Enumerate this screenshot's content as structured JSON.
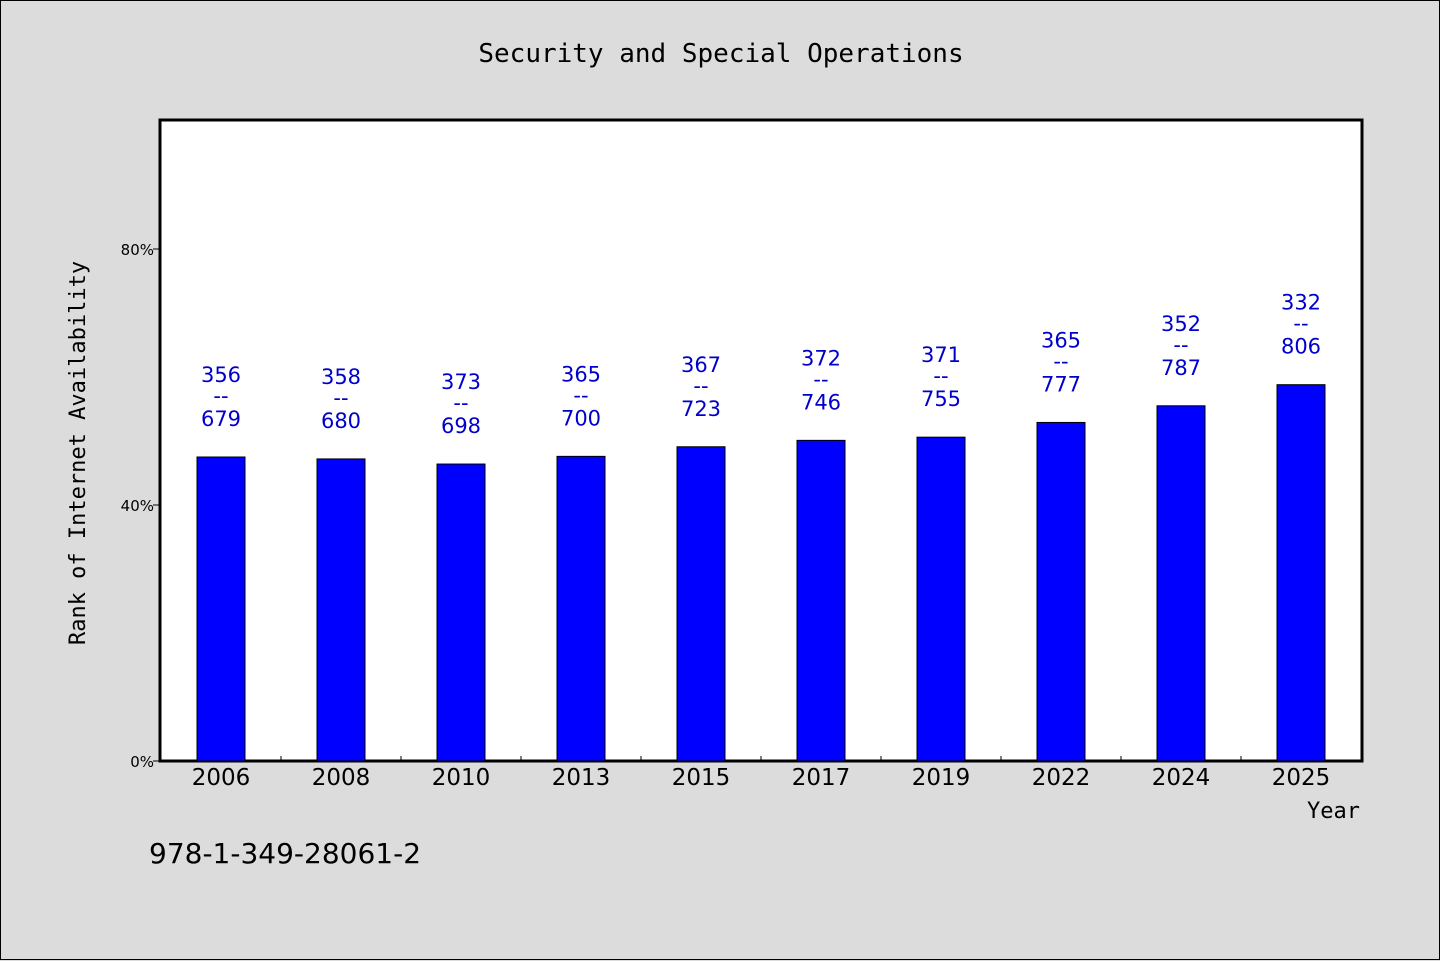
{
  "chart_data": {
    "type": "bar",
    "title": "Security and Special Operations",
    "xlabel": "Year",
    "ylabel": "Rank of Internet Availability",
    "categories": [
      "2006",
      "2008",
      "2010",
      "2013",
      "2015",
      "2017",
      "2019",
      "2022",
      "2024",
      "2025"
    ],
    "values": [
      47.5,
      47.2,
      46.4,
      47.6,
      49.1,
      50.1,
      50.6,
      52.9,
      55.5,
      58.8
    ],
    "bar_labels_top": [
      "356",
      "358",
      "373",
      "365",
      "367",
      "372",
      "371",
      "365",
      "352",
      "332"
    ],
    "bar_labels_sep": "--",
    "bar_labels_bottom": [
      "679",
      "680",
      "698",
      "700",
      "723",
      "746",
      "755",
      "777",
      "787",
      "806"
    ],
    "y_ticks": [
      0,
      40,
      80
    ],
    "y_tick_labels": [
      "0%",
      "40%",
      "80%"
    ],
    "ylim": [
      0,
      100
    ],
    "grid": false,
    "legend": "none",
    "colors": {
      "bar": "#0000ff",
      "label": "#0000cc",
      "background": "#dcdcdc",
      "plot": "#ffffff"
    }
  },
  "footnote": "978-1-349-28061-2"
}
